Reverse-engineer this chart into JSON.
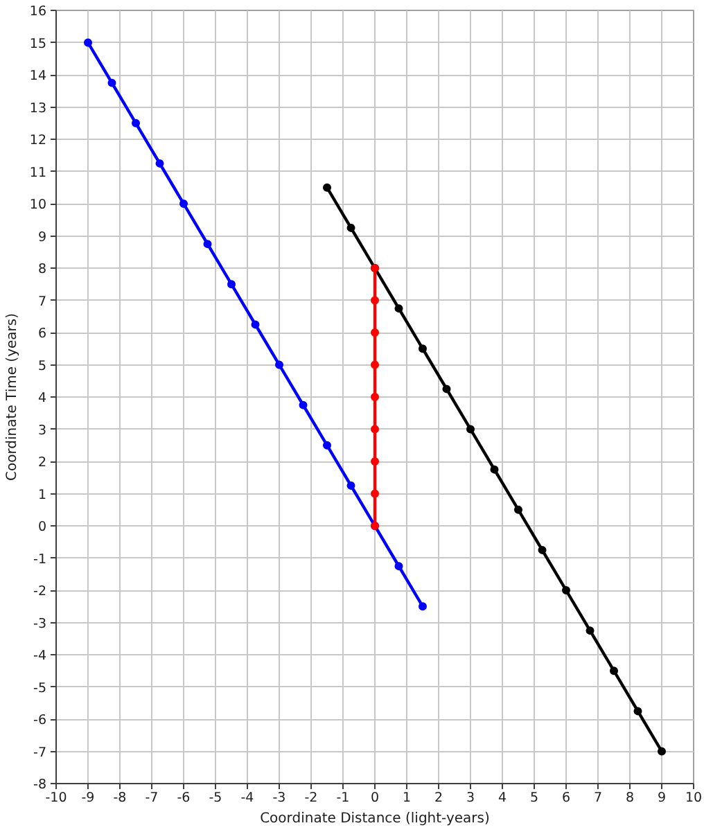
{
  "chart_data": {
    "type": "line",
    "xlabel": "Coordinate Distance (light-years)",
    "ylabel": "Coordinate Time (years)",
    "xlim": [
      -10,
      10
    ],
    "ylim": [
      -8,
      16
    ],
    "xticks": [
      -10,
      -9,
      -8,
      -7,
      -6,
      -5,
      -4,
      -3,
      -2,
      -1,
      0,
      1,
      2,
      3,
      4,
      5,
      6,
      7,
      8,
      9,
      10
    ],
    "yticks": [
      -8,
      -7,
      -6,
      -5,
      -4,
      -3,
      -2,
      -1,
      0,
      1,
      2,
      3,
      4,
      5,
      6,
      7,
      8,
      9,
      10,
      11,
      12,
      13,
      14,
      15,
      16
    ],
    "grid": true,
    "marker": "circle",
    "line_style": "solid",
    "series": [
      {
        "color": "#0000ff",
        "x": [
          -9,
          -8.25,
          -7.5,
          -6.75,
          -6,
          -5.25,
          -4.5,
          -3.75,
          -3,
          -2.25,
          -1.5,
          -0.75,
          0,
          0.75,
          1.5
        ],
        "values": [
          15,
          13.75,
          12.5,
          11.25,
          10,
          8.75,
          7.5,
          6.25,
          5,
          3.75,
          2.5,
          1.25,
          0,
          -1.25,
          -2.5
        ]
      },
      {
        "color": "#000000",
        "x": [
          -1.5,
          -0.75,
          0,
          0.75,
          1.5,
          2.25,
          3,
          3.75,
          4.5,
          5.25,
          6,
          6.75,
          7.5,
          8.25,
          9
        ],
        "values": [
          10.5,
          9.25,
          8,
          6.75,
          5.5,
          4.25,
          3,
          1.75,
          0.5,
          -0.75,
          -2,
          -3.25,
          -4.5,
          -5.75,
          -7
        ]
      },
      {
        "color": "#ff0000",
        "x": [
          0,
          0,
          0,
          0,
          0,
          0,
          0,
          0,
          0
        ],
        "values": [
          0,
          1,
          2,
          3,
          4,
          5,
          6,
          7,
          8
        ]
      }
    ]
  }
}
